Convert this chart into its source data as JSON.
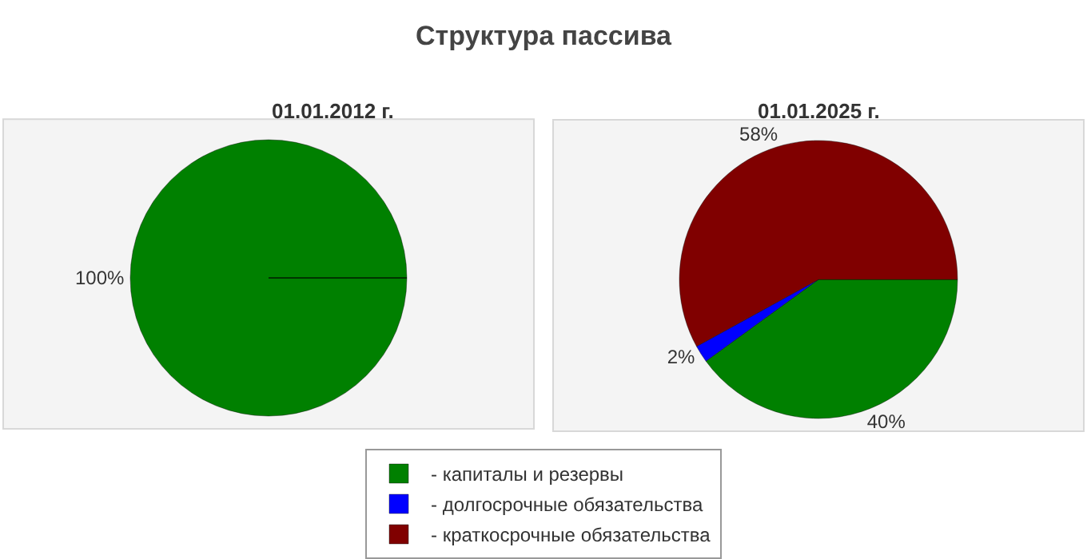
{
  "chart_data": [
    {
      "type": "pie",
      "title": "Структура пассива",
      "subtitle": "01.01.2012 г.",
      "categories": [
        "- капиталы и резервы",
        "- долгосрочные обязательства",
        "- краткосрочные обязательства"
      ],
      "values": [
        100,
        0,
        0
      ],
      "colors": [
        "#008000",
        "#0000ff",
        "#800000"
      ],
      "value_labels": [
        "100%",
        null,
        null
      ],
      "legend": "bottom"
    },
    {
      "type": "pie",
      "title": "01.01.2025 г.",
      "values": [
        40,
        2,
        58
      ],
      "colors": [
        "#008000",
        "#0000ff",
        "#800000"
      ],
      "value_labels": [
        "40%",
        "2%",
        "58%"
      ]
    }
  ]
}
